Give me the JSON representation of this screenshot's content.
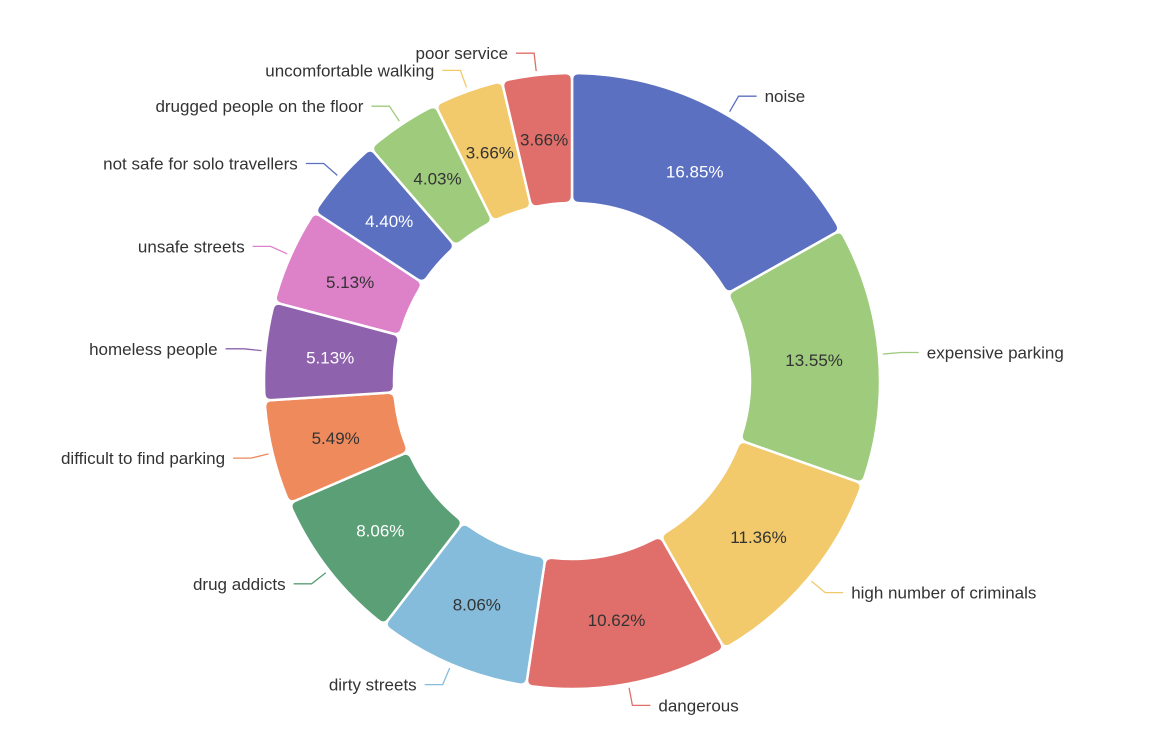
{
  "chart_data": {
    "type": "pie",
    "variant": "donut",
    "title": "",
    "legend": "none",
    "slices": [
      {
        "label": "noise",
        "value": 16.85,
        "display": "16.85%",
        "color": "#5b70c0",
        "text_color": "#ffffff"
      },
      {
        "label": "expensive parking",
        "value": 13.55,
        "display": "13.55%",
        "color": "#9ecb7c",
        "text_color": "#333333"
      },
      {
        "label": "high number of criminals",
        "value": 11.36,
        "display": "11.36%",
        "color": "#f2c96b",
        "text_color": "#333333"
      },
      {
        "label": "dangerous",
        "value": 10.62,
        "display": "10.62%",
        "color": "#e06e6a",
        "text_color": "#333333"
      },
      {
        "label": "dirty streets",
        "value": 8.06,
        "display": "8.06%",
        "color": "#86bcdb",
        "text_color": "#333333"
      },
      {
        "label": "drug addicts",
        "value": 8.06,
        "display": "8.06%",
        "color": "#5a9f75",
        "text_color": "#ffffff"
      },
      {
        "label": "difficult to find parking",
        "value": 5.49,
        "display": "5.49%",
        "color": "#ee8a5b",
        "text_color": "#333333"
      },
      {
        "label": "homeless people",
        "value": 5.13,
        "display": "5.13%",
        "color": "#8f62ad",
        "text_color": "#ffffff"
      },
      {
        "label": "unsafe streets",
        "value": 5.13,
        "display": "5.13%",
        "color": "#dd81c9",
        "text_color": "#333333"
      },
      {
        "label": "not safe for solo travellers",
        "value": 4.4,
        "display": "4.40%",
        "color": "#5b70c0",
        "text_color": "#ffffff"
      },
      {
        "label": "drugged people on the floor",
        "value": 4.03,
        "display": "4.03%",
        "color": "#9ecb7c",
        "text_color": "#333333"
      },
      {
        "label": "uncomfortable walking",
        "value": 3.66,
        "display": "3.66%",
        "color": "#f2c96b",
        "text_color": "#333333"
      },
      {
        "label": "poor service",
        "value": 3.66,
        "display": "3.66%",
        "color": "#e06e6a",
        "text_color": "#333333"
      }
    ]
  }
}
